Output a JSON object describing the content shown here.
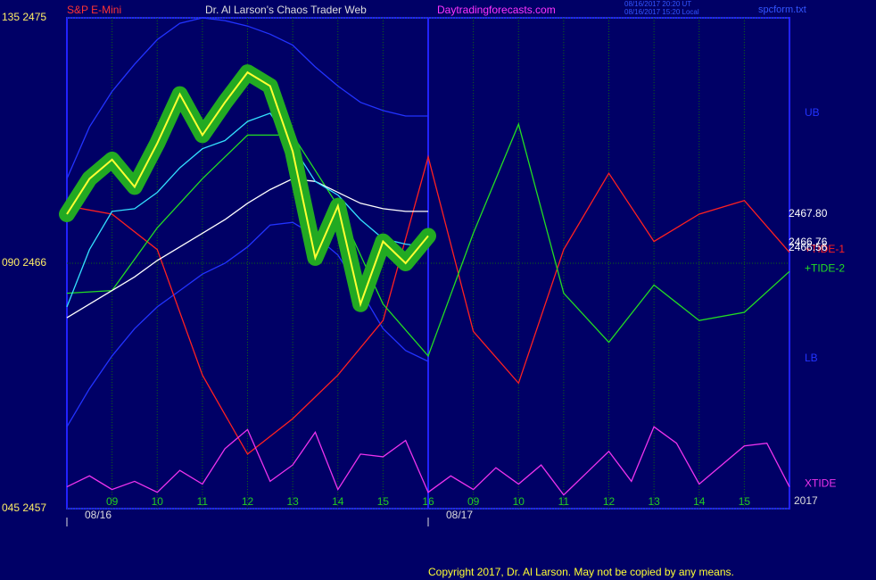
{
  "chart_data": {
    "type": "line",
    "title": "Dr. Al Larson's Chaos Trader Web",
    "symbol": "S&P E-Mini",
    "website": "Daytradingforecasts.com",
    "timestamps": [
      "08/16/2017 20:20 UT",
      "08/16/2017 15:20 Local"
    ],
    "file_name": "spcform.txt",
    "copyright": "Copyright 2017, Dr. Al Larson. May not be copied by any means.",
    "year_label": "2017",
    "xlim": [
      0,
      16
    ],
    "ylim": [
      2457,
      2475
    ],
    "yticks": [
      {
        "value": 2475,
        "label": "135 2475"
      },
      {
        "value": 2466,
        "label": "090 2466"
      },
      {
        "value": 2457,
        "label": "045 2457"
      }
    ],
    "xticks": [
      {
        "value": 1,
        "label": "09"
      },
      {
        "value": 2,
        "label": "10"
      },
      {
        "value": 3,
        "label": "11"
      },
      {
        "value": 4,
        "label": "12"
      },
      {
        "value": 5,
        "label": "13"
      },
      {
        "value": 6,
        "label": "14"
      },
      {
        "value": 7,
        "label": "15"
      },
      {
        "value": 8,
        "label": "16"
      },
      {
        "value": 9,
        "label": "09"
      },
      {
        "value": 10,
        "label": "10"
      },
      {
        "value": 11,
        "label": "11"
      },
      {
        "value": 12,
        "label": "12"
      },
      {
        "value": 13,
        "label": "13"
      },
      {
        "value": 14,
        "label": "14"
      },
      {
        "value": 15,
        "label": "15"
      }
    ],
    "date_ticks": [
      {
        "value": 0,
        "label": "08/16"
      },
      {
        "value": 8,
        "label": "08/17"
      }
    ],
    "price_labels": [
      {
        "value": 2467.8,
        "label": "2467.80"
      },
      {
        "value": 2466.56,
        "label": "2466.56"
      },
      {
        "value": 2466.76,
        "label": "2466.76"
      }
    ],
    "grid": true,
    "series": [
      {
        "name": "UB",
        "color": "#2233ff",
        "x": [
          0,
          0.5,
          1,
          1.5,
          2,
          2.5,
          3,
          3.5,
          4,
          4.5,
          5,
          5.5,
          6,
          6.5,
          7,
          7.5,
          8
        ],
        "values": [
          2469.1,
          2471.0,
          2472.3,
          2473.3,
          2474.2,
          2474.8,
          2475.0,
          2474.9,
          2474.7,
          2474.4,
          2474.0,
          2473.2,
          2472.5,
          2471.9,
          2471.6,
          2471.4,
          2471.4
        ]
      },
      {
        "name": "LB",
        "color": "#2233ff",
        "x": [
          0,
          0.5,
          1,
          1.5,
          2,
          2.5,
          3,
          3.5,
          4,
          4.5,
          5,
          5.5,
          6,
          6.5,
          7,
          7.5,
          8
        ],
        "values": [
          2460.0,
          2461.4,
          2462.6,
          2463.6,
          2464.4,
          2465.0,
          2465.6,
          2466.0,
          2466.6,
          2467.4,
          2467.5,
          2467.0,
          2466.3,
          2465.0,
          2463.6,
          2462.8,
          2462.4
        ]
      },
      {
        "name": "+TIDE-1",
        "color": "#ff2020",
        "x": [
          0,
          1,
          2,
          3,
          4,
          5,
          6,
          7,
          8,
          9,
          10,
          11,
          12,
          13,
          14,
          15,
          16
        ],
        "values": [
          2468.1,
          2467.8,
          2466.5,
          2461.9,
          2459.0,
          2460.3,
          2461.9,
          2463.9,
          2469.9,
          2463.5,
          2461.6,
          2466.5,
          2469.3,
          2466.8,
          2467.8,
          2468.3,
          2466.4
        ]
      },
      {
        "name": "+TIDE-2",
        "color": "#22dd22",
        "x": [
          0,
          1,
          2,
          3,
          4,
          5,
          6,
          7,
          8,
          9,
          10,
          11,
          12,
          13,
          14,
          15,
          16
        ],
        "values": [
          2464.9,
          2465.0,
          2467.3,
          2469.1,
          2470.7,
          2470.7,
          2468.1,
          2464.5,
          2462.6,
          2467.1,
          2471.1,
          2464.9,
          2463.1,
          2465.2,
          2463.9,
          2464.2,
          2465.7
        ]
      },
      {
        "name": "XTIDE",
        "color": "#ee33ee",
        "x": [
          0,
          0.5,
          1,
          1.5,
          2,
          2.5,
          3,
          3.5,
          4,
          4.5,
          5,
          5.5,
          6,
          6.5,
          7,
          7.5,
          8,
          8.5,
          9,
          9.5,
          10,
          10.5,
          11,
          11.5,
          12,
          12.5,
          13,
          13.5,
          14,
          14.5,
          15,
          15.5,
          16
        ],
        "values": [
          2457.8,
          2458.2,
          2457.7,
          2458.0,
          2457.6,
          2458.4,
          2457.9,
          2459.2,
          2459.9,
          2458.0,
          2458.6,
          2459.8,
          2457.7,
          2459.0,
          2458.9,
          2459.5,
          2457.6,
          2458.2,
          2457.7,
          2458.5,
          2457.9,
          2458.6,
          2457.5,
          2458.3,
          2459.1,
          2458.0,
          2460.0,
          2459.4,
          2457.9,
          2458.6,
          2459.3,
          2459.4,
          2457.8
        ]
      },
      {
        "color": "#ffffff",
        "x": [
          0,
          0.5,
          1,
          1.5,
          2,
          2.5,
          3,
          3.5,
          4,
          4.5,
          5,
          5.5,
          6,
          6.5,
          7,
          7.5,
          8
        ],
        "values": [
          2464.0,
          2464.5,
          2465.0,
          2465.5,
          2466.1,
          2466.6,
          2467.1,
          2467.6,
          2468.2,
          2468.7,
          2469.1,
          2469.0,
          2468.6,
          2468.2,
          2468.0,
          2467.9,
          2467.9
        ]
      },
      {
        "color": "#33e0ff",
        "x": [
          0,
          0.5,
          1,
          1.5,
          2,
          2.5,
          3,
          3.5,
          4,
          4.5,
          5,
          5.5,
          6,
          6.5,
          7,
          7.5,
          8
        ],
        "values": [
          2464.4,
          2466.5,
          2467.9,
          2468.0,
          2468.6,
          2469.5,
          2470.2,
          2470.5,
          2471.2,
          2471.5,
          2470.3,
          2469.0,
          2468.5,
          2467.6,
          2466.9,
          2466.7,
          2466.6
        ]
      },
      {
        "color": "#ffff33",
        "halo": "#22aa22",
        "x": [
          0,
          0.5,
          1,
          1.5,
          2,
          2.5,
          3,
          3.5,
          4,
          4.5,
          5,
          5.5,
          6,
          6.5,
          7,
          7.5,
          8
        ],
        "values": [
          2467.8,
          2469.1,
          2469.8,
          2468.8,
          2470.4,
          2472.2,
          2470.7,
          2471.9,
          2473.0,
          2472.5,
          2470.1,
          2466.2,
          2468.1,
          2464.5,
          2466.8,
          2466.0,
          2467.0
        ]
      }
    ]
  }
}
